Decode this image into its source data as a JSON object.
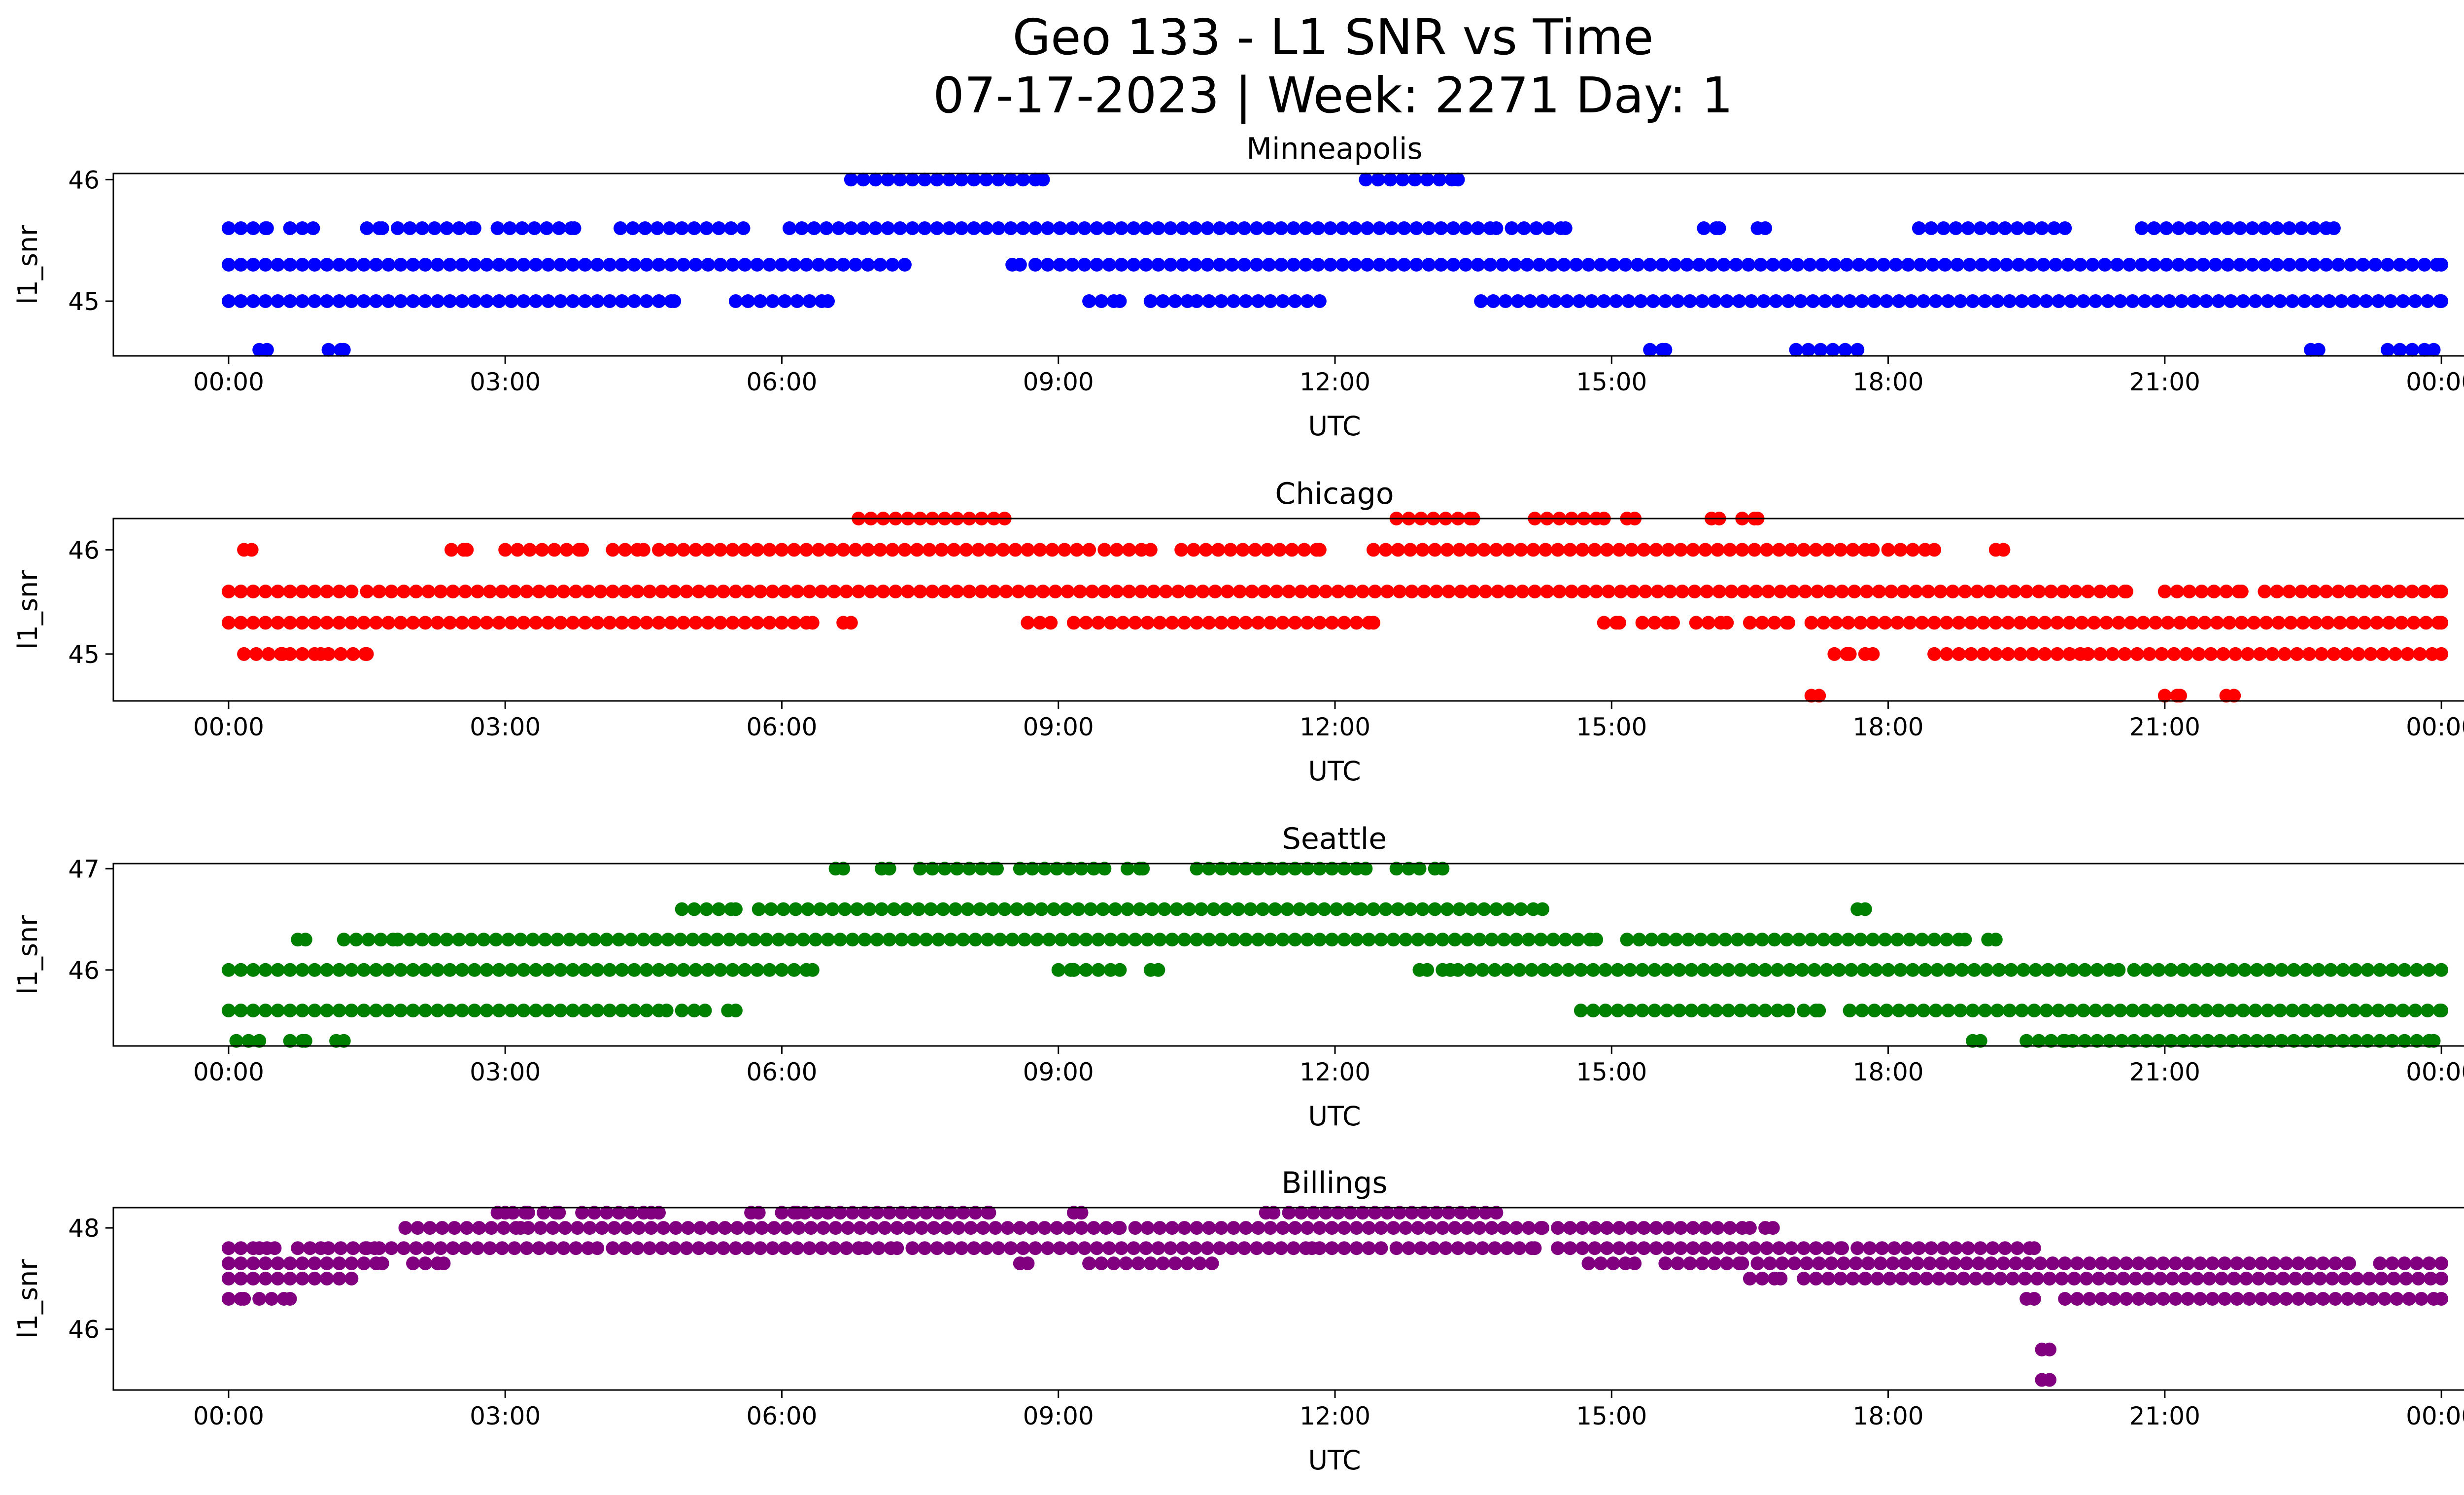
{
  "figure": {
    "title_line1": "Geo 133 - L1 SNR vs Time",
    "title_line2": "07-17-2023 | Week: 2271 Day: 1"
  },
  "chart_data": [
    {
      "type": "scatter",
      "title": "Minneapolis",
      "xlabel": "UTC",
      "ylabel": "l1_snr",
      "color": "#0000ff",
      "xlim": [
        "2023-07-16 22:45",
        "2023-07-18 01:15"
      ],
      "ylim": [
        44.55,
        46.05
      ],
      "x_ticks": [
        "00:00",
        "03:00",
        "06:00",
        "09:00",
        "12:00",
        "15:00",
        "18:00",
        "21:00",
        "00:00"
      ],
      "y_ticks": [
        45,
        46
      ],
      "series": [
        {
          "levels": [
            {
              "y": 46.0,
              "x_ranges": [
                [
                  "06:45",
                  "08:50"
                ],
                [
                  "12:20",
                  "13:20"
                ]
              ]
            },
            {
              "y": 45.6,
              "x_ranges": [
                [
                  "00:00",
                  "00:25"
                ],
                [
                  "00:40",
                  "00:55"
                ],
                [
                  "01:30",
                  "01:40"
                ],
                [
                  "01:50",
                  "02:40"
                ],
                [
                  "02:55",
                  "03:45"
                ],
                [
                  "04:15",
                  "05:35"
                ],
                [
                  "06:05",
                  "13:45"
                ],
                [
                  "13:55",
                  "14:30"
                ],
                [
                  "16:00",
                  "16:10"
                ],
                [
                  "16:35",
                  "16:40"
                ],
                [
                  "18:20",
                  "19:55"
                ],
                [
                  "20:45",
                  "22:50"
                ]
              ]
            },
            {
              "y": 45.3,
              "x_ranges": [
                [
                  "00:00",
                  "07:20"
                ],
                [
                  "08:30",
                  "08:35"
                ],
                [
                  "08:45",
                  "24:00"
                ]
              ]
            },
            {
              "y": 45.0,
              "x_ranges": [
                [
                  "00:00",
                  "04:50"
                ],
                [
                  "05:30",
                  "06:30"
                ],
                [
                  "09:20",
                  "09:40"
                ],
                [
                  "10:00",
                  "10:30"
                ],
                [
                  "10:30",
                  "11:50"
                ],
                [
                  "13:35",
                  "24:00"
                ]
              ]
            },
            {
              "y": 44.6,
              "x_ranges": [
                [
                  "00:20",
                  "00:25"
                ],
                [
                  "01:05",
                  "01:15"
                ],
                [
                  "15:25",
                  "15:35"
                ],
                [
                  "17:00",
                  "17:40"
                ],
                [
                  "22:35",
                  "22:40"
                ],
                [
                  "23:25",
                  "23:55"
                ]
              ]
            }
          ]
        }
      ]
    },
    {
      "type": "scatter",
      "title": "Chicago",
      "xlabel": "UTC",
      "ylabel": "l1_snr",
      "color": "#ff0000",
      "xlim": [
        "2023-07-16 22:45",
        "2023-07-18 01:15"
      ],
      "ylim": [
        44.55,
        46.3
      ],
      "x_ticks": [
        "00:00",
        "03:00",
        "06:00",
        "09:00",
        "12:00",
        "15:00",
        "18:00",
        "21:00",
        "00:00"
      ],
      "y_ticks": [
        45,
        46
      ],
      "series": [
        {
          "levels": [
            {
              "y": 46.3,
              "x_ranges": [
                [
                  "06:50",
                  "08:25"
                ],
                [
                  "12:40",
                  "13:30"
                ],
                [
                  "14:10",
                  "14:55"
                ],
                [
                  "15:10",
                  "15:15"
                ],
                [
                  "16:05",
                  "16:10"
                ],
                [
                  "16:25",
                  "16:35"
                ]
              ]
            },
            {
              "y": 46.0,
              "x_ranges": [
                [
                  "00:10",
                  "00:15"
                ],
                [
                  "02:25",
                  "02:35"
                ],
                [
                  "03:00",
                  "03:50"
                ],
                [
                  "04:10",
                  "04:30"
                ],
                [
                  "04:40",
                  "09:20"
                ],
                [
                  "09:30",
                  "10:00"
                ],
                [
                  "10:20",
                  "11:50"
                ],
                [
                  "12:25",
                  "17:50"
                ],
                [
                  "18:00",
                  "18:30"
                ],
                [
                  "19:10",
                  "19:15"
                ]
              ]
            },
            {
              "y": 45.6,
              "x_ranges": [
                [
                  "00:00",
                  "01:20"
                ],
                [
                  "01:30",
                  "20:35"
                ],
                [
                  "21:00",
                  "21:50"
                ],
                [
                  "22:05",
                  "24:00"
                ]
              ]
            },
            {
              "y": 45.3,
              "x_ranges": [
                [
                  "00:00",
                  "06:20"
                ],
                [
                  "06:40",
                  "06:45"
                ],
                [
                  "08:40",
                  "08:55"
                ],
                [
                  "09:10",
                  "12:25"
                ],
                [
                  "14:55",
                  "15:05"
                ],
                [
                  "15:20",
                  "15:40"
                ],
                [
                  "15:55",
                  "16:15"
                ],
                [
                  "16:30",
                  "16:55"
                ],
                [
                  "17:10",
                  "24:00"
                ]
              ]
            },
            {
              "y": 45.0,
              "x_ranges": [
                [
                  "00:10",
                  "00:35"
                ],
                [
                  "00:40",
                  "01:00"
                ],
                [
                  "01:05",
                  "01:30"
                ],
                [
                  "17:25",
                  "17:35"
                ],
                [
                  "17:45",
                  "17:50"
                ],
                [
                  "18:30",
                  "20:05"
                ],
                [
                  "20:10",
                  "24:00"
                ]
              ]
            },
            {
              "y": 44.6,
              "x_ranges": [
                [
                  "17:10",
                  "17:15"
                ],
                [
                  "21:00",
                  "21:10"
                ],
                [
                  "21:40",
                  "21:45"
                ]
              ]
            }
          ]
        }
      ]
    },
    {
      "type": "scatter",
      "title": "Seattle",
      "xlabel": "UTC",
      "ylabel": "l1_snr",
      "color": "#008000",
      "xlim": [
        "2023-07-16 22:45",
        "2023-07-18 01:15"
      ],
      "ylim": [
        45.25,
        47.05
      ],
      "x_ticks": [
        "00:00",
        "03:00",
        "06:00",
        "09:00",
        "12:00",
        "15:00",
        "18:00",
        "21:00",
        "00:00"
      ],
      "y_ticks": [
        46,
        47
      ],
      "series": [
        {
          "levels": [
            {
              "y": 47.0,
              "x_ranges": [
                [
                  "06:35",
                  "06:40"
                ],
                [
                  "07:05",
                  "07:10"
                ],
                [
                  "07:30",
                  "08:20"
                ],
                [
                  "08:35",
                  "09:30"
                ],
                [
                  "09:45",
                  "09:55"
                ],
                [
                  "10:30",
                  "12:20"
                ],
                [
                  "12:40",
                  "12:55"
                ],
                [
                  "13:05",
                  "13:10"
                ]
              ]
            },
            {
              "y": 46.6,
              "x_ranges": [
                [
                  "04:55",
                  "05:30"
                ],
                [
                  "05:45",
                  "14:15"
                ],
                [
                  "17:40",
                  "17:45"
                ]
              ]
            },
            {
              "y": 46.3,
              "x_ranges": [
                [
                  "00:45",
                  "00:50"
                ],
                [
                  "01:15",
                  "01:50"
                ],
                [
                  "01:50",
                  "14:50"
                ],
                [
                  "15:10",
                  "18:50"
                ],
                [
                  "19:05",
                  "19:10"
                ]
              ]
            },
            {
              "y": 46.0,
              "x_ranges": [
                [
                  "00:00",
                  "06:20"
                ],
                [
                  "09:00",
                  "09:10"
                ],
                [
                  "09:10",
                  "09:40"
                ],
                [
                  "10:00",
                  "10:05"
                ],
                [
                  "12:55",
                  "13:00"
                ],
                [
                  "13:10",
                  "13:15"
                ],
                [
                  "13:20",
                  "20:30"
                ],
                [
                  "20:40",
                  "24:00"
                ]
              ]
            },
            {
              "y": 45.6,
              "x_ranges": [
                [
                  "00:00",
                  "04:45"
                ],
                [
                  "04:55",
                  "05:10"
                ],
                [
                  "05:25",
                  "05:30"
                ],
                [
                  "14:40",
                  "16:55"
                ],
                [
                  "17:05",
                  "17:15"
                ],
                [
                  "17:35",
                  "24:00"
                ]
              ]
            },
            {
              "y": 45.3,
              "x_ranges": [
                [
                  "00:05",
                  "00:20"
                ],
                [
                  "00:40",
                  "00:50"
                ],
                [
                  "01:10",
                  "01:15"
                ],
                [
                  "18:55",
                  "19:00"
                ],
                [
                  "19:30",
                  "19:55"
                ],
                [
                  "20:00",
                  "23:55"
                ]
              ]
            }
          ]
        }
      ]
    },
    {
      "type": "scatter",
      "title": "Billings",
      "xlabel": "UTC",
      "ylabel": "l1_snr",
      "color": "#800080",
      "xlim": [
        "2023-07-16 22:45",
        "2023-07-18 01:15"
      ],
      "ylim": [
        44.8,
        48.4
      ],
      "x_ticks": [
        "00:00",
        "03:00",
        "06:00",
        "09:00",
        "12:00",
        "15:00",
        "18:00",
        "21:00",
        "00:00"
      ],
      "y_ticks": [
        46,
        48
      ],
      "series": [
        {
          "levels": [
            {
              "y": 48.3,
              "x_ranges": [
                [
                  "02:55",
                  "03:00"
                ],
                [
                  "03:05",
                  "03:15"
                ],
                [
                  "03:25",
                  "03:35"
                ],
                [
                  "03:50",
                  "04:30"
                ],
                [
                  "04:35",
                  "04:40"
                ],
                [
                  "05:40",
                  "05:45"
                ],
                [
                  "06:00",
                  "06:10"
                ],
                [
                  "06:15",
                  "06:30"
                ],
                [
                  "06:30",
                  "08:15"
                ],
                [
                  "09:10",
                  "09:15"
                ],
                [
                  "11:15",
                  "11:20"
                ],
                [
                  "11:30",
                  "13:45"
                ]
              ]
            },
            {
              "y": 48.0,
              "x_ranges": [
                [
                  "01:55",
                  "03:10"
                ],
                [
                  "03:15",
                  "09:40"
                ],
                [
                  "09:50",
                  "14:15"
                ],
                [
                  "14:25",
                  "16:30"
                ],
                [
                  "16:40",
                  "16:45"
                ]
              ]
            },
            {
              "y": 47.6,
              "x_ranges": [
                [
                  "00:00",
                  "00:20"
                ],
                [
                  "00:25",
                  "00:30"
                ],
                [
                  "00:45",
                  "01:00"
                ],
                [
                  "01:05",
                  "01:35"
                ],
                [
                  "01:30",
                  "04:00"
                ],
                [
                  "04:10",
                  "06:50"
                ],
                [
                  "06:55",
                  "07:15"
                ],
                [
                  "07:25",
                  "11:45"
                ],
                [
                  "11:50",
                  "12:30"
                ],
                [
                  "12:40",
                  "14:10"
                ],
                [
                  "14:25",
                  "17:30"
                ],
                [
                  "17:40",
                  "19:35"
                ]
              ]
            },
            {
              "y": 47.3,
              "x_ranges": [
                [
                  "00:00",
                  "01:40"
                ],
                [
                  "02:00",
                  "02:20"
                ],
                [
                  "08:35",
                  "08:40"
                ],
                [
                  "09:20",
                  "10:40"
                ],
                [
                  "14:45",
                  "15:15"
                ],
                [
                  "15:35",
                  "16:25"
                ],
                [
                  "16:35",
                  "23:00"
                ],
                [
                  "23:20",
                  "24:00"
                ]
              ]
            },
            {
              "y": 47.0,
              "x_ranges": [
                [
                  "00:00",
                  "01:20"
                ],
                [
                  "16:30",
                  "16:50"
                ],
                [
                  "17:05",
                  "19:45"
                ],
                [
                  "19:45",
                  "24:00"
                ]
              ]
            },
            {
              "y": 46.6,
              "x_ranges": [
                [
                  "00:00",
                  "00:10"
                ],
                [
                  "00:20",
                  "00:40"
                ],
                [
                  "19:30",
                  "19:35"
                ],
                [
                  "19:55",
                  "24:00"
                ]
              ]
            },
            {
              "y": 45.6,
              "x_ranges": [
                [
                  "19:40",
                  "19:45"
                ]
              ]
            },
            {
              "y": 45.0,
              "x_ranges": [
                [
                  "19:40",
                  "19:45"
                ]
              ]
            }
          ]
        }
      ]
    }
  ]
}
